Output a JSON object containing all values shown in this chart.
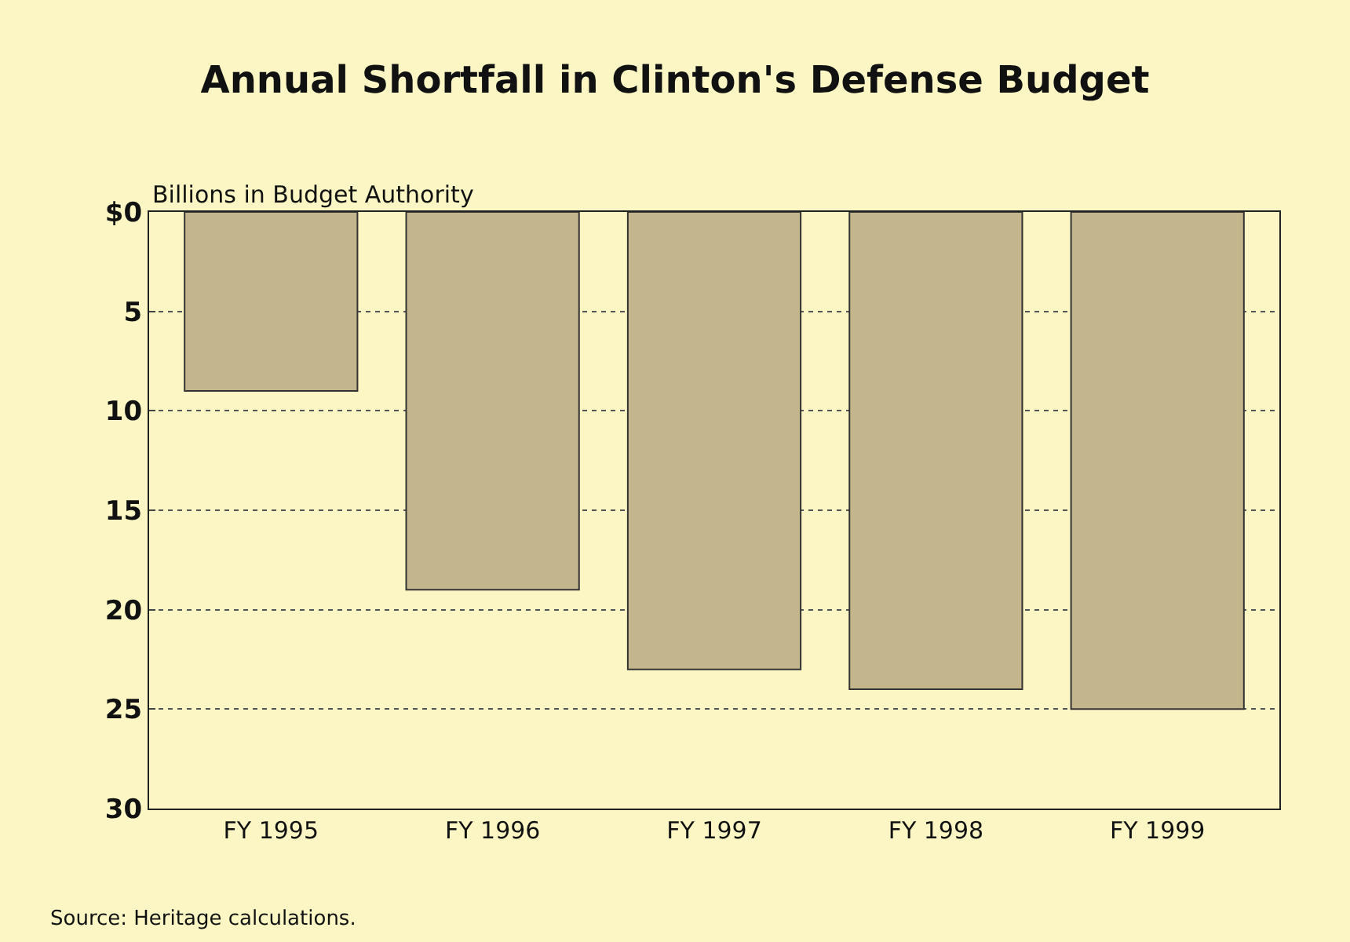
{
  "chart_data": {
    "type": "bar",
    "title": "Annual Shortfall in Clinton's Defense Budget",
    "ylabel": "Billions in Budget Authority",
    "categories": [
      "FY 1995",
      "FY 1996",
      "FY 1997",
      "FY 1998",
      "FY 1999"
    ],
    "values": [
      9,
      19,
      23,
      24,
      25
    ],
    "color": "#c4b68c",
    "ylim": [
      30,
      0
    ],
    "yticks": [
      {
        "value": 0,
        "label": "$0"
      },
      5,
      10,
      15,
      20,
      25,
      30
    ],
    "grid": "y",
    "annotations": [
      "Source: Heritage calculations."
    ]
  }
}
